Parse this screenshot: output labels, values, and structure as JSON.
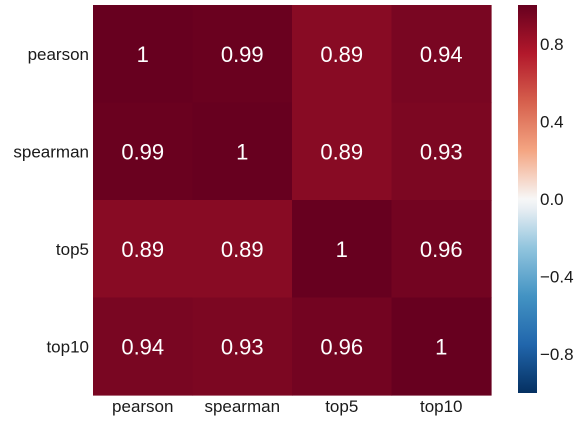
{
  "chart_data": {
    "type": "heatmap",
    "title": "",
    "xlabel": "",
    "ylabel": "",
    "rows": [
      "pearson",
      "spearman",
      "top5",
      "top10"
    ],
    "columns": [
      "pearson",
      "spearman",
      "top5",
      "top10"
    ],
    "values": [
      [
        1,
        0.99,
        0.89,
        0.94
      ],
      [
        0.99,
        1,
        0.89,
        0.93
      ],
      [
        0.89,
        0.89,
        1,
        0.96
      ],
      [
        0.94,
        0.93,
        0.96,
        1
      ]
    ],
    "annotations": [
      [
        "1",
        "0.99",
        "0.89",
        "0.94"
      ],
      [
        "0.99",
        "1",
        "0.89",
        "0.93"
      ],
      [
        "0.89",
        "0.89",
        "1",
        "0.96"
      ],
      [
        "0.94",
        "0.93",
        "0.96",
        "1"
      ]
    ],
    "colorscale": "RdBu_r",
    "vmin": -1,
    "vmax": 1,
    "colorbar_ticks": [
      0.8,
      0.4,
      0.0,
      -0.4,
      -0.8
    ],
    "colorbar_tick_labels": [
      "0.8",
      "0.4",
      "0.0",
      "−0.4",
      "−0.8"
    ],
    "annotation_color": "#ffffff",
    "colorbar_stops": [
      {
        "v": -1.0,
        "color": "#053061"
      },
      {
        "v": -0.75,
        "color": "#2166ac"
      },
      {
        "v": -0.5,
        "color": "#4393c3"
      },
      {
        "v": -0.25,
        "color": "#92c5de"
      },
      {
        "v": -0.05,
        "color": "#e8eef3"
      },
      {
        "v": 0.0,
        "color": "#f7f7f7"
      },
      {
        "v": 0.25,
        "color": "#f4a582"
      },
      {
        "v": 0.5,
        "color": "#d6604d"
      },
      {
        "v": 0.75,
        "color": "#b2182b"
      },
      {
        "v": 1.0,
        "color": "#67001f"
      }
    ]
  }
}
